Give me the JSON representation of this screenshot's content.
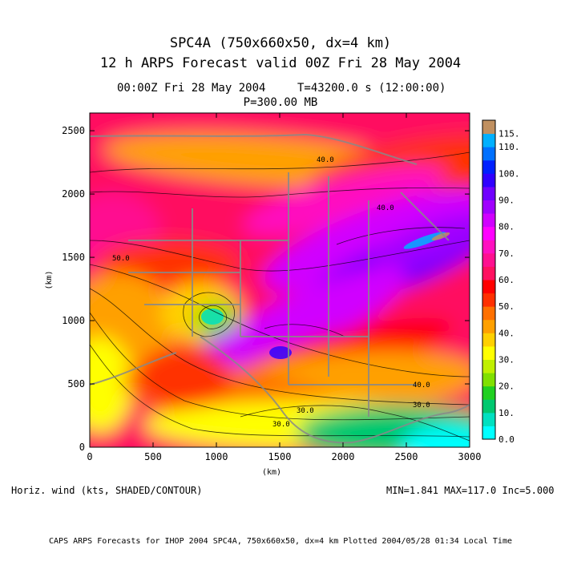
{
  "header": {
    "title_line1": "SPC4A (750x660x50, dx=4 km)",
    "title_line2": "12 h ARPS Forecast valid 00Z Fri 28 May 2004",
    "time_left": "00:00Z Fri 28 May 2004",
    "time_right": "T=43200.0 s (12:00:00)",
    "pressure": "P=300.00 MB"
  },
  "footer": {
    "variable_label": "Horiz. wind (kts, SHADED/CONTOUR)",
    "stats": "MIN=1.841 MAX=117.0 Inc=5.000",
    "credit": "CAPS ARPS Forecasts for IHOP 2004   SPC4A, 750x660x50, dx=4 km   Plotted 2004/05/28 01:34 Local Time"
  },
  "chart_data": {
    "type": "heatmap",
    "title": "SPC4A (750x660x50, dx=4 km)",
    "xlabel": "(km)",
    "ylabel": "(km)",
    "xlim": [
      0,
      3000
    ],
    "ylim": [
      0,
      2640
    ],
    "x_ticks": [
      0,
      500,
      1000,
      1500,
      2000,
      2500,
      3000
    ],
    "y_ticks": [
      0,
      500,
      1000,
      1500,
      2000,
      2500
    ],
    "colorbar": {
      "levels": [
        0.0,
        5.0,
        10.0,
        15.0,
        20.0,
        25.0,
        30.0,
        35.0,
        40.0,
        45.0,
        50.0,
        55.0,
        60.0,
        65.0,
        70.0,
        75.0,
        80.0,
        85.0,
        90.0,
        95.0,
        100.0,
        105.0,
        110.0,
        115.0
      ],
      "labels": [
        "0.0",
        "10.",
        "20.",
        "30.",
        "40.",
        "50.",
        "60.",
        "70.",
        "80.",
        "90.",
        "100.",
        "110.",
        "115."
      ],
      "colors": [
        "#00ffff",
        "#00e0c0",
        "#00c870",
        "#20d020",
        "#80e000",
        "#c0f000",
        "#ffff00",
        "#ffd000",
        "#ffa000",
        "#ff7000",
        "#ff3000",
        "#ff0000",
        "#ff1060",
        "#ff1090",
        "#ff10c0",
        "#ff00ff",
        "#d000ff",
        "#a000ff",
        "#7000ff",
        "#3000ff",
        "#0020ff",
        "#0070ff",
        "#00b0ff",
        "#c09060"
      ]
    },
    "contour_labels": [
      "40.0",
      "50.0",
      "30.0",
      "40.0",
      "40.0",
      "30.0",
      "30.0"
    ],
    "min": 1.841,
    "max": 117.0,
    "increment": 5.0
  }
}
